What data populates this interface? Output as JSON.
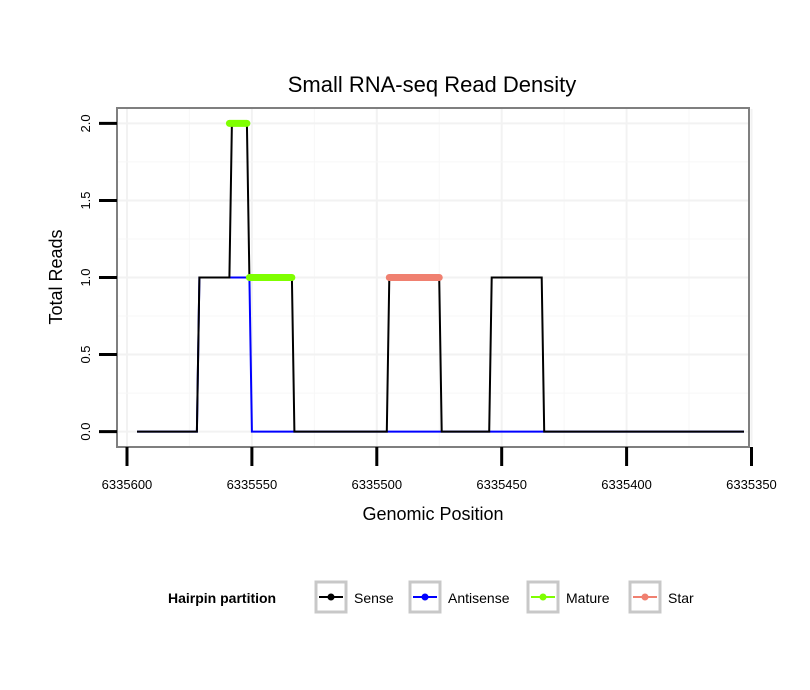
{
  "chart_data": {
    "type": "line",
    "title": "Small RNA-seq Read Density",
    "xlabel": "Genomic Position",
    "ylabel": "Total Reads",
    "xlim": [
      6335604,
      6335351
    ],
    "ylim": [
      -0.1,
      2.1
    ],
    "x_reversed": true,
    "xticks": [
      6335600,
      6335550,
      6335500,
      6335450,
      6335400,
      6335350
    ],
    "xtick_labels": [
      "6335600",
      "6335550",
      "6335500",
      "6335450",
      "6335400",
      "6335350"
    ],
    "yticks": [
      0,
      0.5,
      1,
      1.5,
      2
    ],
    "ytick_labels": [
      "0.0",
      "0.5",
      "1.0",
      "1.5",
      "2.0"
    ],
    "grid": true,
    "legend": {
      "title": "Hairpin partition",
      "position": "bottom",
      "entries": [
        {
          "name": "Sense",
          "color": "#000000"
        },
        {
          "name": "Antisense",
          "color": "#0000ff"
        },
        {
          "name": "Mature",
          "color": "#7fff00"
        },
        {
          "name": "Star",
          "color": "#f08070"
        }
      ]
    },
    "series": [
      {
        "name": "Sense",
        "color": "#000000",
        "kind": "line",
        "x": [
          6335596,
          6335572,
          6335571,
          6335559,
          6335558,
          6335552,
          6335551,
          6335534,
          6335533,
          6335517,
          6335516,
          6335496,
          6335495,
          6335475,
          6335474,
          6335455,
          6335454,
          6335434,
          6335433,
          6335353
        ],
        "y": [
          0,
          0,
          1,
          1,
          2,
          2,
          1,
          1,
          0,
          0,
          0,
          0,
          1,
          1,
          0,
          0,
          1,
          1,
          0,
          0
        ]
      },
      {
        "name": "Antisense",
        "color": "#0000ff",
        "kind": "line",
        "x": [
          6335596,
          6335572,
          6335571,
          6335551,
          6335550,
          6335353
        ],
        "y": [
          0,
          0,
          1,
          1,
          0,
          0
        ]
      },
      {
        "name": "Mature",
        "color": "#7fff00",
        "kind": "segment",
        "segments": [
          {
            "x_start": 6335559,
            "x_end": 6335552,
            "y": 2
          },
          {
            "x_start": 6335551,
            "x_end": 6335534,
            "y": 1
          }
        ]
      },
      {
        "name": "Star",
        "color": "#f08070",
        "kind": "segment",
        "segments": [
          {
            "x_start": 6335495,
            "x_end": 6335475,
            "y": 1
          }
        ]
      }
    ]
  }
}
